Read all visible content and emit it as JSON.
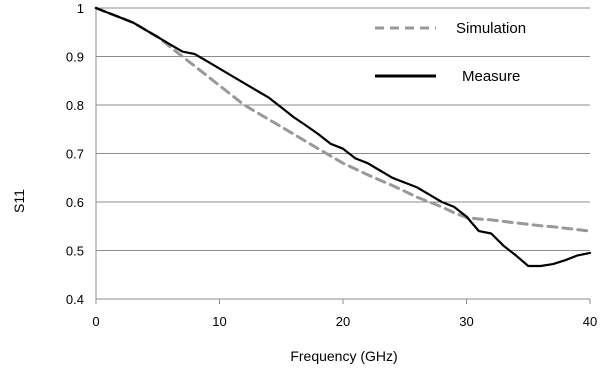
{
  "chart_data": {
    "type": "line",
    "title": "",
    "xlabel": "Frequency (GHz)",
    "ylabel": "S11",
    "xlim": [
      0,
      40
    ],
    "ylim": [
      0.4,
      1.0
    ],
    "xticks": [
      0,
      10,
      20,
      30,
      40
    ],
    "yticks": [
      0.4,
      0.5,
      0.6,
      0.7,
      0.8,
      0.9,
      1.0
    ],
    "xtick_labels": [
      "0",
      "10",
      "20",
      "30",
      "40"
    ],
    "ytick_labels": [
      "0.4",
      "0.5",
      "0.6",
      "0.7",
      "0.8",
      "0.9",
      "1"
    ],
    "grid": "horizontal",
    "legend_position": "top-right",
    "series": [
      {
        "name": "Simulation",
        "style": "dashed",
        "color": "#999999",
        "x": [
          0,
          1,
          2,
          3,
          4,
          5,
          6,
          7,
          8,
          9,
          10,
          11,
          12,
          13,
          14,
          15,
          16,
          17,
          18,
          19,
          20,
          21,
          22,
          23,
          24,
          25,
          26,
          27,
          28,
          29,
          30,
          31,
          32,
          33,
          34,
          35,
          36,
          37,
          38,
          39,
          40
        ],
        "y": [
          1.0,
          0.99,
          0.98,
          0.97,
          0.955,
          0.94,
          0.92,
          0.9,
          0.88,
          0.86,
          0.84,
          0.82,
          0.8,
          0.785,
          0.77,
          0.755,
          0.74,
          0.725,
          0.71,
          0.695,
          0.68,
          0.668,
          0.656,
          0.645,
          0.634,
          0.622,
          0.61,
          0.6,
          0.59,
          0.578,
          0.568,
          0.565,
          0.563,
          0.56,
          0.557,
          0.554,
          0.551,
          0.549,
          0.546,
          0.543,
          0.54
        ]
      },
      {
        "name": "Measure",
        "style": "solid",
        "color": "#000000",
        "x": [
          0,
          1,
          2,
          3,
          4,
          5,
          6,
          7,
          8,
          9,
          10,
          11,
          12,
          13,
          14,
          15,
          16,
          17,
          18,
          19,
          20,
          21,
          22,
          23,
          24,
          25,
          26,
          27,
          28,
          29,
          30,
          31,
          32,
          33,
          34,
          35,
          36,
          37,
          38,
          39,
          40
        ],
        "y": [
          1.0,
          0.99,
          0.98,
          0.97,
          0.955,
          0.94,
          0.925,
          0.91,
          0.905,
          0.89,
          0.875,
          0.86,
          0.845,
          0.83,
          0.815,
          0.795,
          0.775,
          0.758,
          0.74,
          0.72,
          0.71,
          0.69,
          0.68,
          0.665,
          0.65,
          0.64,
          0.63,
          0.615,
          0.6,
          0.59,
          0.57,
          0.54,
          0.535,
          0.51,
          0.49,
          0.468,
          0.468,
          0.472,
          0.48,
          0.49,
          0.495
        ]
      }
    ]
  }
}
